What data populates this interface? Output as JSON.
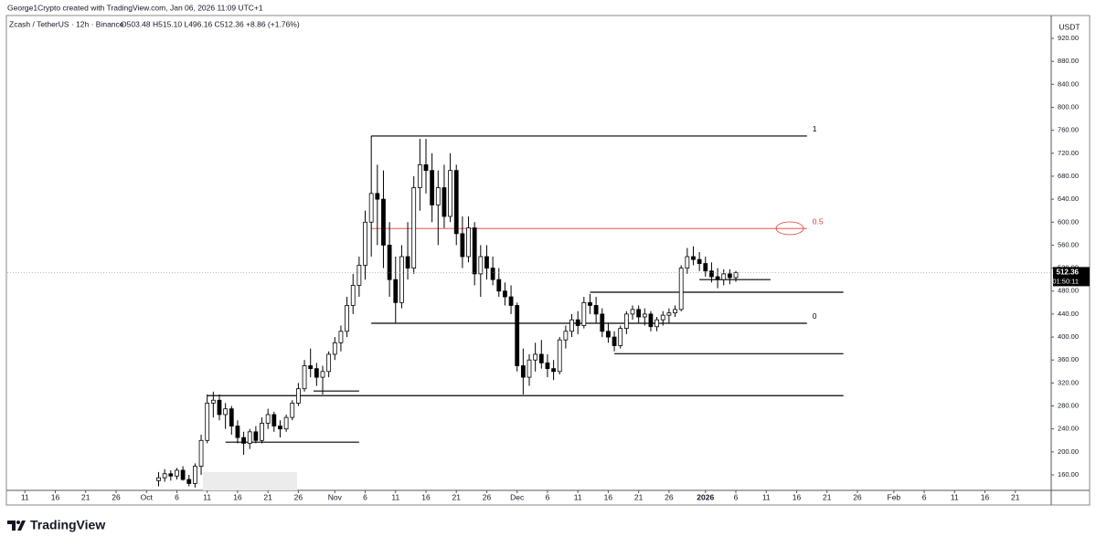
{
  "header": {
    "attribution": "George1Crypto created with TradingView.com, Jan 06, 2026 11:09 UTC+1",
    "symbol": "Zcash / TetherUS · 12h · Binance",
    "ohlc": "O503.48 H515.10 L496.16 C512.36 +8.86 (+1.76%)"
  },
  "chart_data": {
    "type": "candlestick",
    "currency": "USDT",
    "x": [
      22,
      23,
      24,
      25,
      26,
      27,
      28,
      29,
      30,
      31,
      32,
      33,
      34,
      35,
      36,
      37,
      38,
      39,
      40,
      41,
      42,
      43,
      44,
      45,
      46,
      47,
      48,
      49,
      50,
      51,
      52,
      53,
      54,
      55,
      56,
      57,
      58,
      59,
      60,
      61,
      62,
      63,
      64,
      65,
      66,
      67,
      68,
      69,
      70,
      71,
      72,
      73,
      74,
      75,
      76,
      77,
      78,
      79,
      80,
      81,
      82,
      83,
      84,
      85,
      86,
      87,
      88,
      89,
      90,
      91,
      92,
      93,
      94,
      95,
      96,
      97,
      98,
      99,
      100,
      101,
      102,
      103,
      104,
      105,
      106,
      107,
      108,
      109,
      110,
      111,
      112,
      113,
      114,
      115,
      116,
      117
    ],
    "open": [
      150,
      155,
      162,
      158,
      168,
      152,
      145,
      175,
      220,
      285,
      290,
      265,
      275,
      245,
      225,
      215,
      235,
      220,
      250,
      265,
      245,
      240,
      260,
      285,
      310,
      350,
      345,
      330,
      340,
      370,
      390,
      410,
      455,
      490,
      525,
      600,
      650,
      640,
      560,
      500,
      460,
      540,
      520,
      660,
      700,
      690,
      630,
      660,
      610,
      690,
      580,
      540,
      590,
      510,
      540,
      520,
      500,
      480,
      470,
      455,
      350,
      330,
      360,
      370,
      355,
      345,
      340,
      395,
      410,
      430,
      420,
      460,
      455,
      440,
      410,
      400,
      385,
      415,
      440,
      448,
      435,
      440,
      418,
      430,
      438,
      442,
      448,
      520,
      540,
      535,
      528,
      515,
      505,
      500,
      510,
      503.48
    ],
    "high": [
      165,
      170,
      168,
      172,
      175,
      160,
      180,
      230,
      300,
      305,
      300,
      285,
      280,
      255,
      235,
      240,
      245,
      260,
      275,
      270,
      255,
      265,
      290,
      320,
      360,
      380,
      355,
      350,
      375,
      400,
      420,
      470,
      510,
      540,
      620,
      750,
      700,
      690,
      600,
      540,
      560,
      600,
      680,
      745,
      745,
      720,
      690,
      700,
      720,
      700,
      610,
      610,
      600,
      560,
      560,
      540,
      520,
      495,
      490,
      460,
      380,
      370,
      390,
      395,
      370,
      360,
      400,
      420,
      440,
      445,
      470,
      475,
      470,
      450,
      425,
      410,
      420,
      445,
      455,
      455,
      450,
      445,
      435,
      445,
      450,
      455,
      525,
      555,
      558,
      548,
      540,
      530,
      520,
      518,
      518,
      515.1
    ],
    "low": [
      140,
      148,
      150,
      152,
      150,
      140,
      138,
      160,
      215,
      260,
      255,
      240,
      230,
      215,
      195,
      205,
      215,
      215,
      240,
      235,
      225,
      235,
      255,
      280,
      305,
      330,
      315,
      300,
      330,
      360,
      375,
      400,
      440,
      470,
      500,
      540,
      560,
      520,
      470,
      425,
      450,
      500,
      510,
      620,
      650,
      600,
      560,
      590,
      600,
      560,
      520,
      530,
      490,
      470,
      500,
      490,
      470,
      455,
      440,
      340,
      300,
      315,
      340,
      345,
      330,
      325,
      335,
      380,
      400,
      405,
      415,
      440,
      425,
      400,
      390,
      375,
      380,
      405,
      430,
      425,
      420,
      410,
      410,
      420,
      425,
      435,
      445,
      510,
      525,
      515,
      505,
      495,
      485,
      490,
      492,
      496.16
    ],
    "close": [
      155,
      162,
      158,
      168,
      152,
      145,
      175,
      220,
      285,
      290,
      265,
      275,
      245,
      225,
      215,
      235,
      220,
      250,
      265,
      245,
      240,
      260,
      285,
      310,
      350,
      345,
      330,
      340,
      370,
      390,
      410,
      455,
      490,
      525,
      600,
      650,
      640,
      560,
      500,
      460,
      540,
      520,
      660,
      700,
      690,
      630,
      660,
      610,
      690,
      580,
      540,
      590,
      510,
      540,
      520,
      500,
      480,
      470,
      455,
      350,
      330,
      360,
      370,
      355,
      345,
      340,
      395,
      410,
      430,
      420,
      460,
      455,
      440,
      410,
      400,
      385,
      415,
      440,
      448,
      435,
      440,
      418,
      430,
      438,
      442,
      448,
      520,
      540,
      535,
      528,
      515,
      505,
      500,
      510,
      503.48,
      512.36
    ],
    "up_color": "#ffffff",
    "down_color": "#000000",
    "border_color": "#000000",
    "xlim": [
      -2.9,
      168.9
    ],
    "xticks": [
      {
        "value": 0,
        "label": "11"
      },
      {
        "value": 5,
        "label": "16"
      },
      {
        "value": 10,
        "label": "21"
      },
      {
        "value": 15,
        "label": "26"
      },
      {
        "value": 20,
        "label": "Oct"
      },
      {
        "value": 25,
        "label": "6"
      },
      {
        "value": 30,
        "label": "11"
      },
      {
        "value": 35,
        "label": "16"
      },
      {
        "value": 40,
        "label": "21"
      },
      {
        "value": 45,
        "label": "26"
      },
      {
        "value": 51,
        "label": "Nov"
      },
      {
        "value": 56,
        "label": "6"
      },
      {
        "value": 61,
        "label": "11"
      },
      {
        "value": 66,
        "label": "16"
      },
      {
        "value": 71,
        "label": "21"
      },
      {
        "value": 76,
        "label": "26"
      },
      {
        "value": 81,
        "label": "Dec"
      },
      {
        "value": 86,
        "label": "6"
      },
      {
        "value": 91,
        "label": "11"
      },
      {
        "value": 96,
        "label": "16"
      },
      {
        "value": 101,
        "label": "21"
      },
      {
        "value": 106,
        "label": "26"
      },
      {
        "value": 112,
        "label": "2026"
      },
      {
        "value": 117,
        "label": "6"
      },
      {
        "value": 122,
        "label": "11"
      },
      {
        "value": 127,
        "label": "16"
      },
      {
        "value": 132,
        "label": "21"
      },
      {
        "value": 137,
        "label": "26"
      },
      {
        "value": 143,
        "label": "Feb"
      },
      {
        "value": 148,
        "label": "6"
      },
      {
        "value": 153,
        "label": "11"
      },
      {
        "value": 158,
        "label": "16"
      },
      {
        "value": 163,
        "label": "21"
      }
    ],
    "ylim": [
      133,
      955
    ],
    "yticks": [
      {
        "value": 160,
        "label": "160.00"
      },
      {
        "value": 200,
        "label": "200.00"
      },
      {
        "value": 240,
        "label": "240.00"
      },
      {
        "value": 280,
        "label": "280.00"
      },
      {
        "value": 320,
        "label": "320.00"
      },
      {
        "value": 360,
        "label": "360.00"
      },
      {
        "value": 400,
        "label": "400.00"
      },
      {
        "value": 440,
        "label": "440.00"
      },
      {
        "value": 480,
        "label": "480.00"
      },
      {
        "value": 520,
        "label": "520.00"
      },
      {
        "value": 560,
        "label": "560.00"
      },
      {
        "value": 600,
        "label": "600.00"
      },
      {
        "value": 640,
        "label": "640.00"
      },
      {
        "value": 680,
        "label": "680.00"
      },
      {
        "value": 720,
        "label": "720.00"
      },
      {
        "value": 760,
        "label": "760.00"
      },
      {
        "value": 800,
        "label": "800.00"
      },
      {
        "value": 840,
        "label": "840.00"
      },
      {
        "value": 880,
        "label": "880.00"
      },
      {
        "value": 920,
        "label": "920.00"
      }
    ],
    "last_price": 512.36,
    "countdown": "01:50:11",
    "levels": [
      {
        "value": 750,
        "from": 57,
        "to": 128.7,
        "label": "1",
        "color": "#000000"
      },
      {
        "value": 589,
        "from": 57,
        "to": 128.7,
        "label": "0.5",
        "color": "#e53935"
      },
      {
        "value": 424,
        "from": 57,
        "to": 128.7,
        "label": "0",
        "color": "#000000"
      },
      {
        "value": 298,
        "from": 30,
        "to": 134.7,
        "color": "#000000"
      },
      {
        "value": 217,
        "from": 33,
        "to": 55,
        "color": "#000000"
      },
      {
        "value": 306,
        "from": 47.5,
        "to": 55,
        "color": "#000000"
      },
      {
        "value": 478,
        "from": 93,
        "to": 134.7,
        "color": "#000000"
      },
      {
        "value": 371,
        "from": 97,
        "to": 134.7,
        "color": "#000000"
      },
      {
        "value": 500,
        "from": 111,
        "to": 122.7,
        "color": "#000000"
      }
    ]
  },
  "footer": {
    "brand": "TradingView"
  }
}
